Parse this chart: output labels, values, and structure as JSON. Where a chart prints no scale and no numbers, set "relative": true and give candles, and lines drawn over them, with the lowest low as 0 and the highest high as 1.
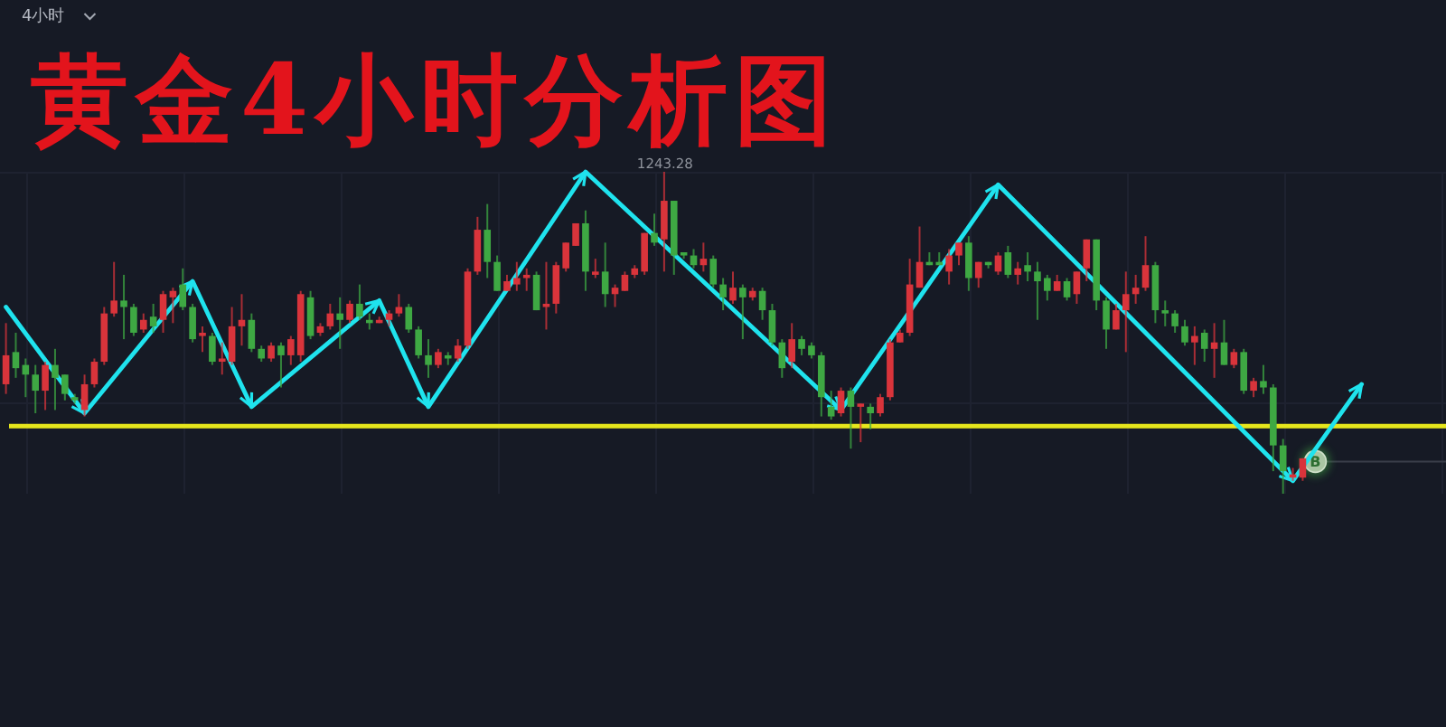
{
  "chart_data": {
    "type": "candlestick",
    "title": "黄金4小时分析图",
    "relative": true,
    "grid": true,
    "categories": [
      null,
      null,
      null,
      null,
      null,
      null,
      null,
      null,
      null,
      null,
      null,
      null,
      null,
      null,
      null,
      null,
      null,
      null,
      null,
      null,
      null,
      null,
      null,
      null,
      null,
      null,
      null,
      null,
      null,
      null,
      null,
      null,
      null,
      null,
      null,
      null,
      null,
      null,
      null,
      null,
      null,
      null,
      null,
      null,
      null,
      null,
      null,
      null,
      null,
      null,
      null,
      null,
      null,
      null,
      null,
      null,
      null,
      null,
      null,
      null,
      null,
      null,
      null,
      null,
      null,
      null,
      null,
      null,
      null,
      null,
      null,
      null,
      null,
      null,
      null,
      null,
      null,
      null,
      null,
      null,
      null,
      null,
      null,
      null,
      null,
      null,
      null,
      null,
      null,
      null,
      null,
      null,
      null,
      null,
      null,
      null,
      null,
      null,
      null,
      null,
      null,
      null,
      null,
      null,
      null,
      null,
      null,
      null,
      null,
      null,
      null,
      null,
      null,
      null,
      null,
      null,
      null,
      null,
      null,
      null,
      null,
      null,
      null,
      null,
      null,
      null,
      null,
      null,
      null,
      null,
      null,
      null,
      null,
      null,
      null,
      null,
      null,
      null,
      null
    ],
    "ohlc": [
      [
        0.34,
        0.53,
        0.31,
        0.43
      ],
      [
        0.44,
        0.5,
        0.36,
        0.39
      ],
      [
        0.4,
        0.42,
        0.3,
        0.37
      ],
      [
        0.37,
        0.4,
        0.25,
        0.32
      ],
      [
        0.32,
        0.41,
        0.26,
        0.4
      ],
      [
        0.4,
        0.45,
        0.26,
        0.36
      ],
      [
        0.37,
        0.37,
        0.29,
        0.31
      ],
      [
        0.3,
        0.31,
        0.28,
        0.29
      ],
      [
        0.26,
        0.37,
        0.24,
        0.34
      ],
      [
        0.34,
        0.42,
        0.33,
        0.41
      ],
      [
        0.41,
        0.58,
        0.4,
        0.56
      ],
      [
        0.56,
        0.72,
        0.55,
        0.6
      ],
      [
        0.6,
        0.68,
        0.48,
        0.58
      ],
      [
        0.58,
        0.59,
        0.49,
        0.5
      ],
      [
        0.51,
        0.56,
        0.5,
        0.54
      ],
      [
        0.55,
        0.59,
        0.5,
        0.52
      ],
      [
        0.54,
        0.63,
        0.5,
        0.62
      ],
      [
        0.61,
        0.64,
        0.53,
        0.63
      ],
      [
        0.65,
        0.7,
        0.57,
        0.58
      ],
      [
        0.58,
        0.59,
        0.47,
        0.48
      ],
      [
        0.49,
        0.52,
        0.44,
        0.5
      ],
      [
        0.49,
        0.5,
        0.4,
        0.41
      ],
      [
        0.41,
        0.47,
        0.37,
        0.42
      ],
      [
        0.41,
        0.58,
        0.4,
        0.52
      ],
      [
        0.52,
        0.62,
        0.46,
        0.54
      ],
      [
        0.54,
        0.56,
        0.44,
        0.45
      ],
      [
        0.45,
        0.46,
        0.41,
        0.42
      ],
      [
        0.42,
        0.47,
        0.41,
        0.46
      ],
      [
        0.46,
        0.47,
        0.33,
        0.43
      ],
      [
        0.43,
        0.49,
        0.4,
        0.48
      ],
      [
        0.43,
        0.63,
        0.41,
        0.62
      ],
      [
        0.61,
        0.63,
        0.48,
        0.49
      ],
      [
        0.5,
        0.53,
        0.49,
        0.52
      ],
      [
        0.52,
        0.59,
        0.51,
        0.56
      ],
      [
        0.56,
        0.61,
        0.45,
        0.54
      ],
      [
        0.54,
        0.6,
        0.53,
        0.59
      ],
      [
        0.59,
        0.65,
        0.54,
        0.55
      ],
      [
        0.54,
        0.56,
        0.51,
        0.53
      ],
      [
        0.53,
        0.55,
        0.53,
        0.54
      ],
      [
        0.54,
        0.57,
        0.52,
        0.56
      ],
      [
        0.56,
        0.62,
        0.55,
        0.58
      ],
      [
        0.58,
        0.59,
        0.5,
        0.51
      ],
      [
        0.51,
        0.52,
        0.42,
        0.43
      ],
      [
        0.43,
        0.48,
        0.36,
        0.4
      ],
      [
        0.4,
        0.45,
        0.39,
        0.44
      ],
      [
        0.43,
        0.44,
        0.4,
        0.42
      ],
      [
        0.42,
        0.48,
        0.41,
        0.46
      ],
      [
        0.46,
        0.7,
        0.45,
        0.69
      ],
      [
        0.69,
        0.86,
        0.68,
        0.82
      ],
      [
        0.82,
        0.9,
        0.67,
        0.72
      ],
      [
        0.72,
        0.74,
        0.63,
        0.63
      ],
      [
        0.63,
        0.68,
        0.63,
        0.66
      ],
      [
        0.65,
        0.72,
        0.63,
        0.67
      ],
      [
        0.67,
        0.7,
        0.63,
        0.68
      ],
      [
        0.68,
        0.69,
        0.57,
        0.57
      ],
      [
        0.58,
        0.72,
        0.51,
        0.59
      ],
      [
        0.59,
        0.72,
        0.56,
        0.71
      ],
      [
        0.7,
        0.78,
        0.69,
        0.78
      ],
      [
        0.77,
        0.84,
        0.77,
        0.84
      ],
      [
        0.84,
        0.88,
        0.63,
        0.69
      ],
      [
        0.68,
        0.73,
        0.67,
        0.69
      ],
      [
        0.69,
        0.78,
        0.58,
        0.62
      ],
      [
        0.62,
        0.65,
        0.58,
        0.64
      ],
      [
        0.63,
        0.69,
        0.63,
        0.68
      ],
      [
        0.68,
        0.71,
        0.67,
        0.7
      ],
      [
        0.69,
        0.81,
        0.68,
        0.81
      ],
      [
        0.81,
        0.87,
        0.77,
        0.78
      ],
      [
        0.79,
        1.0,
        0.69,
        0.91
      ],
      [
        0.91,
        0.91,
        0.68,
        0.74
      ],
      [
        0.75,
        0.75,
        0.73,
        0.74
      ],
      [
        0.74,
        0.76,
        0.7,
        0.71
      ],
      [
        0.71,
        0.78,
        0.69,
        0.73
      ],
      [
        0.73,
        0.74,
        0.64,
        0.65
      ],
      [
        0.65,
        0.67,
        0.57,
        0.61
      ],
      [
        0.6,
        0.69,
        0.59,
        0.64
      ],
      [
        0.64,
        0.65,
        0.48,
        0.61
      ],
      [
        0.61,
        0.64,
        0.6,
        0.63
      ],
      [
        0.63,
        0.64,
        0.54,
        0.57
      ],
      [
        0.57,
        0.59,
        0.46,
        0.47
      ],
      [
        0.47,
        0.48,
        0.36,
        0.39
      ],
      [
        0.41,
        0.53,
        0.39,
        0.48
      ],
      [
        0.48,
        0.49,
        0.43,
        0.45
      ],
      [
        0.46,
        0.47,
        0.42,
        0.43
      ],
      [
        0.43,
        0.44,
        0.24,
        0.3
      ],
      [
        0.27,
        0.32,
        0.23,
        0.24
      ],
      [
        0.25,
        0.33,
        0.24,
        0.32
      ],
      [
        0.32,
        0.33,
        0.14,
        0.27
      ],
      [
        0.27,
        0.28,
        0.16,
        0.28
      ],
      [
        0.27,
        0.28,
        0.2,
        0.25
      ],
      [
        0.25,
        0.31,
        0.24,
        0.3
      ],
      [
        0.3,
        0.48,
        0.29,
        0.47
      ],
      [
        0.47,
        0.51,
        0.47,
        0.5
      ],
      [
        0.5,
        0.73,
        0.49,
        0.65
      ],
      [
        0.64,
        0.83,
        0.64,
        0.72
      ],
      [
        0.72,
        0.75,
        0.71,
        0.71
      ],
      [
        0.72,
        0.75,
        0.71,
        0.71
      ],
      [
        0.69,
        0.76,
        0.65,
        0.74
      ],
      [
        0.74,
        0.78,
        0.71,
        0.78
      ],
      [
        0.78,
        0.8,
        0.63,
        0.67
      ],
      [
        0.67,
        0.72,
        0.64,
        0.72
      ],
      [
        0.72,
        0.72,
        0.7,
        0.71
      ],
      [
        0.69,
        0.75,
        0.68,
        0.74
      ],
      [
        0.75,
        0.77,
        0.67,
        0.68
      ],
      [
        0.68,
        0.72,
        0.65,
        0.7
      ],
      [
        0.71,
        0.75,
        0.66,
        0.69
      ],
      [
        0.69,
        0.72,
        0.54,
        0.66
      ],
      [
        0.67,
        0.68,
        0.6,
        0.63
      ],
      [
        0.63,
        0.68,
        0.63,
        0.66
      ],
      [
        0.66,
        0.67,
        0.6,
        0.61
      ],
      [
        0.62,
        0.69,
        0.59,
        0.69
      ],
      [
        0.7,
        0.79,
        0.66,
        0.79
      ],
      [
        0.79,
        0.79,
        0.57,
        0.6
      ],
      [
        0.6,
        0.61,
        0.45,
        0.51
      ],
      [
        0.51,
        0.59,
        0.51,
        0.57
      ],
      [
        0.57,
        0.69,
        0.44,
        0.62
      ],
      [
        0.62,
        0.68,
        0.59,
        0.64
      ],
      [
        0.64,
        0.8,
        0.63,
        0.71
      ],
      [
        0.71,
        0.72,
        0.53,
        0.57
      ],
      [
        0.57,
        0.6,
        0.52,
        0.56
      ],
      [
        0.56,
        0.57,
        0.5,
        0.52
      ],
      [
        0.52,
        0.54,
        0.46,
        0.47
      ],
      [
        0.47,
        0.52,
        0.4,
        0.49
      ],
      [
        0.5,
        0.51,
        0.41,
        0.45
      ],
      [
        0.45,
        0.53,
        0.36,
        0.47
      ],
      [
        0.47,
        0.54,
        0.4,
        0.4
      ],
      [
        0.4,
        0.45,
        0.39,
        0.44
      ],
      [
        0.44,
        0.45,
        0.31,
        0.32
      ],
      [
        0.32,
        0.36,
        0.3,
        0.35
      ],
      [
        0.35,
        0.4,
        0.31,
        0.33
      ],
      [
        0.33,
        0.34,
        0.07,
        0.15
      ],
      [
        0.15,
        0.17,
        0.0,
        0.07
      ],
      [
        0.05,
        0.08,
        0.04,
        0.06
      ],
      [
        0.05,
        0.11,
        0.04,
        0.11
      ],
      null,
      null,
      null,
      null,
      null,
      null
    ],
    "colors": [
      "#d9343b",
      "#3ea843",
      "#3ea843",
      "#3ea843",
      "#d9343b",
      "#3ea843",
      "#3ea843",
      "#3ea843",
      "#d9343b",
      "#d9343b",
      "#d9343b",
      "#d9343b",
      "#3ea843",
      "#3ea843",
      "#d9343b",
      "#3ea843",
      "#d9343b",
      "#d9343b",
      "#3ea843",
      "#3ea843",
      "#d9343b",
      "#3ea843",
      "#d9343b",
      "#d9343b",
      "#d9343b",
      "#3ea843",
      "#3ea843",
      "#d9343b",
      "#3ea843",
      "#d9343b",
      "#d9343b",
      "#3ea843",
      "#d9343b",
      "#d9343b",
      "#3ea843",
      "#d9343b",
      "#3ea843",
      "#3ea843",
      "#d9343b",
      "#d9343b",
      "#d9343b",
      "#3ea843",
      "#3ea843",
      "#3ea843",
      "#d9343b",
      "#3ea843",
      "#d9343b",
      "#d9343b",
      "#d9343b",
      "#3ea843",
      "#3ea843",
      "#d9343b",
      "#d9343b",
      "#d9343b",
      "#3ea843",
      "#d9343b",
      "#d9343b",
      "#d9343b",
      "#d9343b",
      "#3ea843",
      "#d9343b",
      "#3ea843",
      "#d9343b",
      "#d9343b",
      "#d9343b",
      "#d9343b",
      "#3ea843",
      "#d9343b",
      "#3ea843",
      "#3ea843",
      "#3ea843",
      "#d9343b",
      "#3ea843",
      "#3ea843",
      "#d9343b",
      "#3ea843",
      "#d9343b",
      "#3ea843",
      "#3ea843",
      "#3ea843",
      "#d9343b",
      "#3ea843",
      "#3ea843",
      "#3ea843",
      "#3ea843",
      "#d9343b",
      "#3ea843",
      "#d9343b",
      "#3ea843",
      "#d9343b",
      "#d9343b",
      "#d9343b",
      "#d9343b",
      "#d9343b",
      "#3ea843",
      "#3ea843",
      "#d9343b",
      "#d9343b",
      "#3ea843",
      "#d9343b",
      "#3ea843",
      "#d9343b",
      "#3ea843",
      "#d9343b",
      "#3ea843",
      "#3ea843",
      "#3ea843",
      "#d9343b",
      "#3ea843",
      "#d9343b",
      "#d9343b",
      "#3ea843",
      "#3ea843",
      "#d9343b",
      "#d9343b",
      "#d9343b",
      "#d9343b",
      "#3ea843",
      "#3ea843",
      "#3ea843",
      "#3ea843",
      "#d9343b",
      "#3ea843",
      "#d9343b",
      "#3ea843",
      "#d9343b",
      "#3ea843",
      "#d9343b",
      "#3ea843",
      "#3ea843",
      "#3ea843",
      "#d9343b",
      "#d9343b",
      null,
      null,
      null,
      null,
      null,
      null
    ],
    "series": [
      {
        "type": "line",
        "color": "#1fe3ee",
        "values": [
          0.58,
          null,
          null,
          null,
          null,
          null,
          null,
          null,
          0.25,
          null,
          null,
          null,
          null,
          null,
          null,
          null,
          null,
          null,
          null,
          0.66,
          null,
          null,
          null,
          null,
          null,
          0.27,
          null,
          null,
          null,
          null,
          null,
          null,
          null,
          null,
          null,
          null,
          null,
          null,
          0.6,
          null,
          null,
          null,
          null,
          0.27,
          null,
          null,
          null,
          null,
          null,
          null,
          null,
          null,
          null,
          null,
          null,
          null,
          null,
          null,
          null,
          1.0,
          null,
          null,
          null,
          null,
          null,
          null,
          null,
          null,
          null,
          null,
          null,
          null,
          null,
          null,
          null,
          null,
          null,
          null,
          null,
          null,
          null,
          null,
          null,
          null,
          null,
          0.26,
          null,
          null,
          null,
          null,
          null,
          null,
          null,
          null,
          null,
          null,
          null,
          null,
          null,
          null,
          null,
          0.96,
          null,
          null,
          null,
          null,
          null,
          null,
          null,
          null,
          null,
          null,
          null,
          null,
          null,
          null,
          null,
          null,
          null,
          null,
          null,
          null,
          null,
          null,
          null,
          null,
          null,
          null,
          null,
          null,
          null,
          0.04,
          null,
          null,
          null,
          null,
          null,
          null,
          0.34
        ]
      }
    ],
    "ref_lines": [
      {
        "axis": "y",
        "value": 0.21,
        "color": "#e6e61c"
      },
      {
        "axis": "y",
        "value": 0.1,
        "label": "B",
        "color": "#3a3e4a"
      }
    ],
    "annotations": [
      "4小时",
      "1243.28"
    ]
  }
}
